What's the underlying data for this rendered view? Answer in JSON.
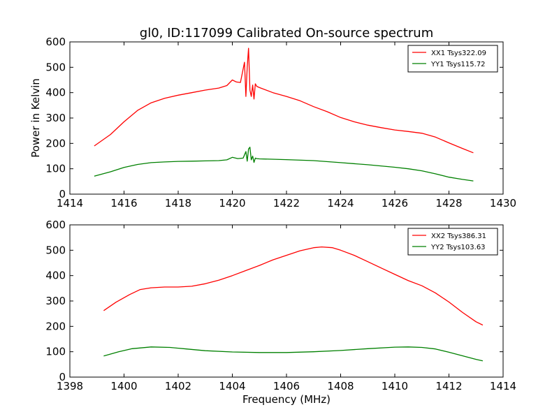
{
  "chart_data": [
    {
      "type": "line",
      "title": "gl0, ID:117099 Calibrated On-source spectrum",
      "xlabel": "",
      "ylabel": "Power in Kelvin",
      "xlim": [
        1414,
        1430
      ],
      "ylim": [
        0,
        600
      ],
      "xticks": [
        "1414",
        "1416",
        "1418",
        "1420",
        "1422",
        "1424",
        "1426",
        "1428",
        "1430"
      ],
      "yticks": [
        "0",
        "100",
        "200",
        "300",
        "400",
        "500",
        "600"
      ],
      "legend": "top-right",
      "grid": false,
      "series": [
        {
          "name": "XX1 Tsys322.09",
          "color": "#ff0000",
          "x": [
            1414.9,
            1415.5,
            1416.0,
            1416.5,
            1417.0,
            1417.5,
            1418.0,
            1418.5,
            1419.0,
            1419.5,
            1419.8,
            1420.0,
            1420.15,
            1420.3,
            1420.45,
            1420.5,
            1420.55,
            1420.6,
            1420.65,
            1420.7,
            1420.75,
            1420.8,
            1420.85,
            1420.9,
            1421.0,
            1421.5,
            1422.0,
            1422.5,
            1423.0,
            1423.5,
            1424.0,
            1424.5,
            1425.0,
            1425.5,
            1426.0,
            1426.5,
            1427.0,
            1427.5,
            1428.0,
            1428.5,
            1428.9
          ],
          "y": [
            190,
            235,
            285,
            330,
            360,
            378,
            390,
            400,
            410,
            418,
            428,
            450,
            442,
            440,
            520,
            385,
            500,
            575,
            410,
            385,
            430,
            375,
            435,
            425,
            420,
            400,
            385,
            368,
            345,
            325,
            302,
            285,
            272,
            262,
            253,
            247,
            240,
            225,
            202,
            180,
            163
          ]
        },
        {
          "name": "YY1 Tsys115.72",
          "color": "#008000",
          "x": [
            1414.9,
            1415.5,
            1416.0,
            1416.5,
            1417.0,
            1417.5,
            1418.0,
            1418.5,
            1419.0,
            1419.5,
            1419.8,
            1420.0,
            1420.2,
            1420.4,
            1420.5,
            1420.55,
            1420.6,
            1420.65,
            1420.7,
            1420.75,
            1420.8,
            1420.85,
            1420.9,
            1421.0,
            1422.0,
            1423.0,
            1424.0,
            1425.0,
            1426.0,
            1426.5,
            1427.0,
            1427.5,
            1428.0,
            1428.5,
            1428.9
          ],
          "y": [
            71,
            88,
            105,
            117,
            124,
            127,
            129,
            130,
            131,
            132,
            135,
            145,
            140,
            142,
            168,
            130,
            178,
            185,
            135,
            150,
            125,
            142,
            140,
            139,
            136,
            132,
            124,
            116,
            106,
            100,
            92,
            80,
            67,
            58,
            52
          ]
        }
      ]
    },
    {
      "type": "line",
      "title": "",
      "xlabel": "Frequency (MHz)",
      "ylabel": "",
      "xlim": [
        1398,
        1414
      ],
      "ylim": [
        0,
        600
      ],
      "xticks": [
        "1398",
        "1400",
        "1402",
        "1404",
        "1406",
        "1408",
        "1410",
        "1412",
        "1414"
      ],
      "yticks": [
        "0",
        "100",
        "200",
        "300",
        "400",
        "500",
        "600"
      ],
      "legend": "top-right",
      "grid": false,
      "series": [
        {
          "name": "XX2 Tsys386.31",
          "color": "#ff0000",
          "x": [
            1399.25,
            1399.7,
            1400.2,
            1400.6,
            1401.0,
            1401.5,
            1402.0,
            1402.5,
            1403.0,
            1403.5,
            1404.0,
            1404.5,
            1405.0,
            1405.5,
            1406.0,
            1406.5,
            1407.0,
            1407.3,
            1407.7,
            1408.0,
            1408.5,
            1409.0,
            1409.5,
            1410.0,
            1410.5,
            1411.0,
            1411.5,
            1412.0,
            1412.5,
            1413.0,
            1413.25
          ],
          "y": [
            262,
            295,
            325,
            345,
            352,
            355,
            355,
            358,
            368,
            382,
            400,
            420,
            440,
            462,
            480,
            498,
            510,
            513,
            510,
            500,
            480,
            455,
            430,
            405,
            380,
            360,
            332,
            296,
            255,
            218,
            205
          ]
        },
        {
          "name": "YY2 Tsys103.63",
          "color": "#008000",
          "x": [
            1399.25,
            1399.8,
            1400.3,
            1401.0,
            1401.7,
            1402.3,
            1403.0,
            1404.0,
            1405.0,
            1406.0,
            1407.0,
            1408.0,
            1409.0,
            1410.0,
            1410.5,
            1411.0,
            1411.5,
            1412.0,
            1412.5,
            1413.0,
            1413.25
          ],
          "y": [
            83,
            100,
            112,
            119,
            117,
            111,
            104,
            99,
            97,
            97,
            100,
            105,
            112,
            118,
            119,
            117,
            111,
            98,
            84,
            70,
            64
          ]
        }
      ]
    }
  ]
}
